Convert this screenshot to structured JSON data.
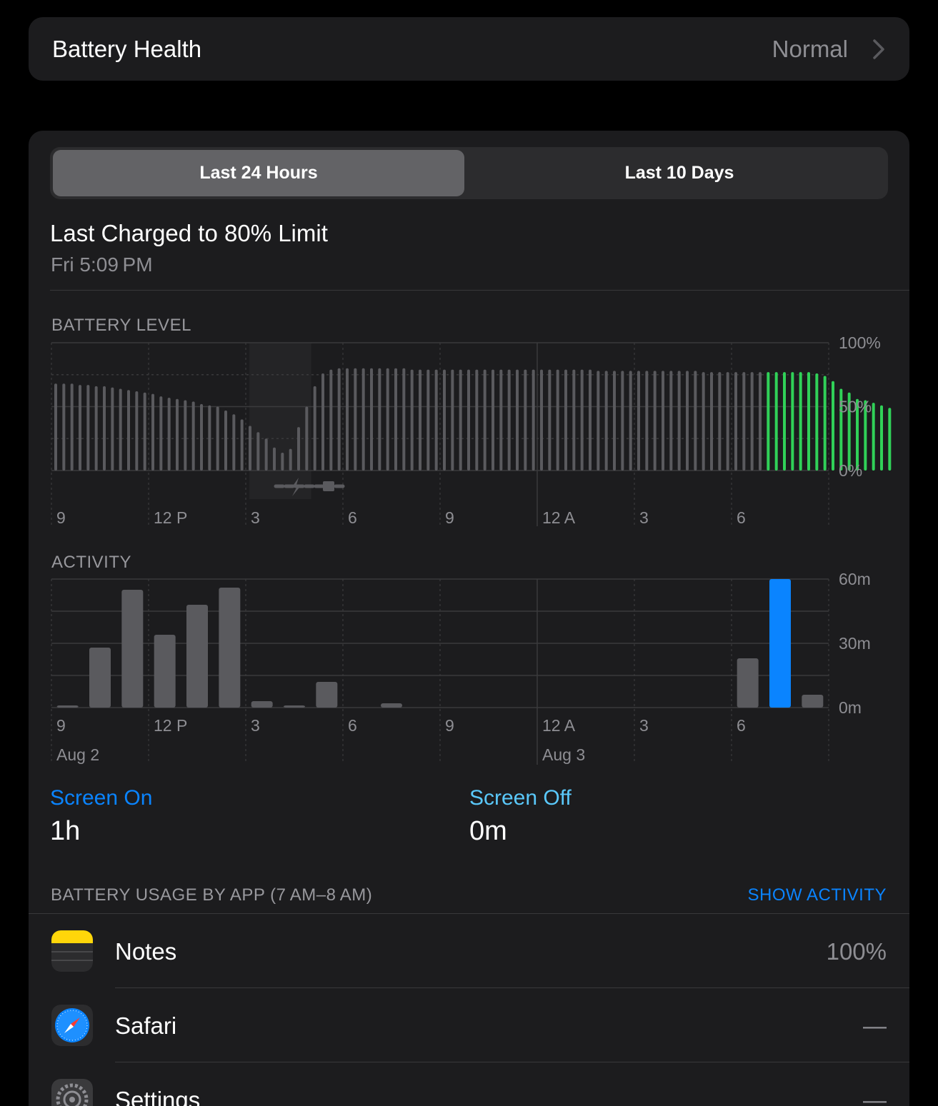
{
  "health": {
    "label": "Battery Health",
    "value": "Normal"
  },
  "tabs": [
    {
      "label": "Last 24 Hours",
      "selected": true
    },
    {
      "label": "Last 10 Days",
      "selected": false
    }
  ],
  "last_charged": {
    "title": "Last Charged to 80% Limit",
    "time": "Fri 5:09 PM"
  },
  "battery_level": {
    "label": "BATTERY LEVEL",
    "y_ticks": [
      "100%",
      "50%",
      "0%"
    ],
    "x_ticks": [
      "9",
      "12 P",
      "3",
      "6",
      "9",
      "12 A",
      "3",
      "6"
    ]
  },
  "activity": {
    "label": "ACTIVITY",
    "y_ticks": [
      "60m",
      "30m",
      "0m"
    ],
    "x_ticks": [
      "9",
      "12 P",
      "3",
      "6",
      "9",
      "12 A",
      "3",
      "6"
    ],
    "dates": [
      "Aug 2",
      "Aug 3"
    ]
  },
  "chart_data": [
    {
      "type": "bar",
      "title": "BATTERY LEVEL",
      "ylim": [
        0,
        100
      ],
      "unit": "%",
      "x_start": "9 AM Aug 2",
      "interval_minutes": 15,
      "values": [
        68,
        68,
        68,
        67,
        67,
        66,
        66,
        65,
        64,
        63,
        62,
        61,
        60,
        58,
        57,
        56,
        55,
        54,
        52,
        51,
        50,
        47,
        44,
        40,
        35,
        30,
        25,
        18,
        14,
        17,
        34,
        50,
        66,
        76,
        79,
        80,
        80,
        80,
        80,
        80,
        80,
        80,
        80,
        80,
        79,
        79,
        79,
        79,
        79,
        79,
        79,
        79,
        79,
        79,
        79,
        79,
        79,
        79,
        79,
        79,
        79,
        79,
        79,
        79,
        79,
        79,
        79,
        78,
        78,
        78,
        78,
        78,
        78,
        78,
        78,
        78,
        78,
        78,
        78,
        78,
        77,
        77,
        77,
        77,
        77,
        77,
        77,
        77,
        77,
        77,
        77,
        77,
        77,
        77,
        76,
        74,
        70,
        64,
        61,
        56,
        55,
        53,
        51,
        49
      ],
      "highlight_from_index": 88,
      "charging_index_range": [
        24,
        32
      ]
    },
    {
      "type": "bar",
      "title": "ACTIVITY",
      "ylim": [
        0,
        60
      ],
      "unit": "m",
      "categories": [
        "9",
        "10",
        "11",
        "12P",
        "1",
        "2",
        "3",
        "4",
        "5",
        "6",
        "7",
        "8",
        "9",
        "10",
        "11",
        "12A",
        "1",
        "2",
        "3",
        "4",
        "5",
        "6",
        "7",
        "8"
      ],
      "values": [
        1,
        28,
        55,
        34,
        48,
        56,
        3,
        1,
        12,
        0,
        2,
        0,
        0,
        0,
        0,
        0,
        0,
        0,
        0,
        0,
        0,
        23,
        60,
        6
      ],
      "highlight_index": 22
    }
  ],
  "screen": {
    "on_label": "Screen On",
    "on_value": "1h",
    "off_label": "Screen Off",
    "off_value": "0m"
  },
  "usage": {
    "header": "BATTERY USAGE BY APP (7 AM–8 AM)",
    "show_activity": "SHOW ACTIVITY",
    "apps": [
      {
        "name": "Notes",
        "value": "100%",
        "icon": "notes-icon"
      },
      {
        "name": "Safari",
        "value": "—",
        "icon": "safari-icon"
      },
      {
        "name": "Settings",
        "value": "—",
        "icon": "settings-icon"
      }
    ]
  },
  "colors": {
    "bar": "#5a5a5e",
    "green": "#30d158",
    "blue": "#0a84ff",
    "grid": "#3a3a3c",
    "label": "#8e8e93"
  }
}
